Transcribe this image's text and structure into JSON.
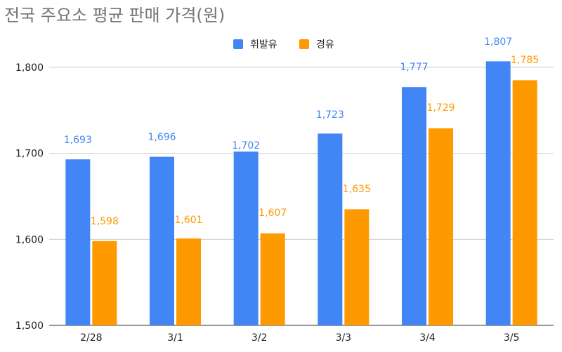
{
  "chart_data": {
    "type": "bar",
    "title": "전국 주요소 평균 판매 가격(원)",
    "xlabel": "",
    "ylabel": "",
    "categories": [
      "2/28",
      "3/1",
      "3/2",
      "3/3",
      "3/4",
      "3/5"
    ],
    "series": [
      {
        "name": "휘발유",
        "color": "#4285F4",
        "values": [
          1693,
          1696,
          1702,
          1723,
          1777,
          1807
        ],
        "labels": [
          "1,693",
          "1,696",
          "1,702",
          "1,723",
          "1,777",
          "1,807"
        ]
      },
      {
        "name": "경유",
        "color": "#FF9900",
        "values": [
          1598,
          1601,
          1607,
          1635,
          1729,
          1785
        ],
        "labels": [
          "1,598",
          "1,601",
          "1,607",
          "1,635",
          "1,729",
          "1,785"
        ]
      }
    ],
    "ylim": [
      1500,
      1800
    ],
    "yticks": [
      1500,
      1600,
      1700,
      1800
    ],
    "ytick_labels": [
      "1,500",
      "1,600",
      "1,700",
      "1,800"
    ],
    "grid": true,
    "legend": "top-center"
  }
}
